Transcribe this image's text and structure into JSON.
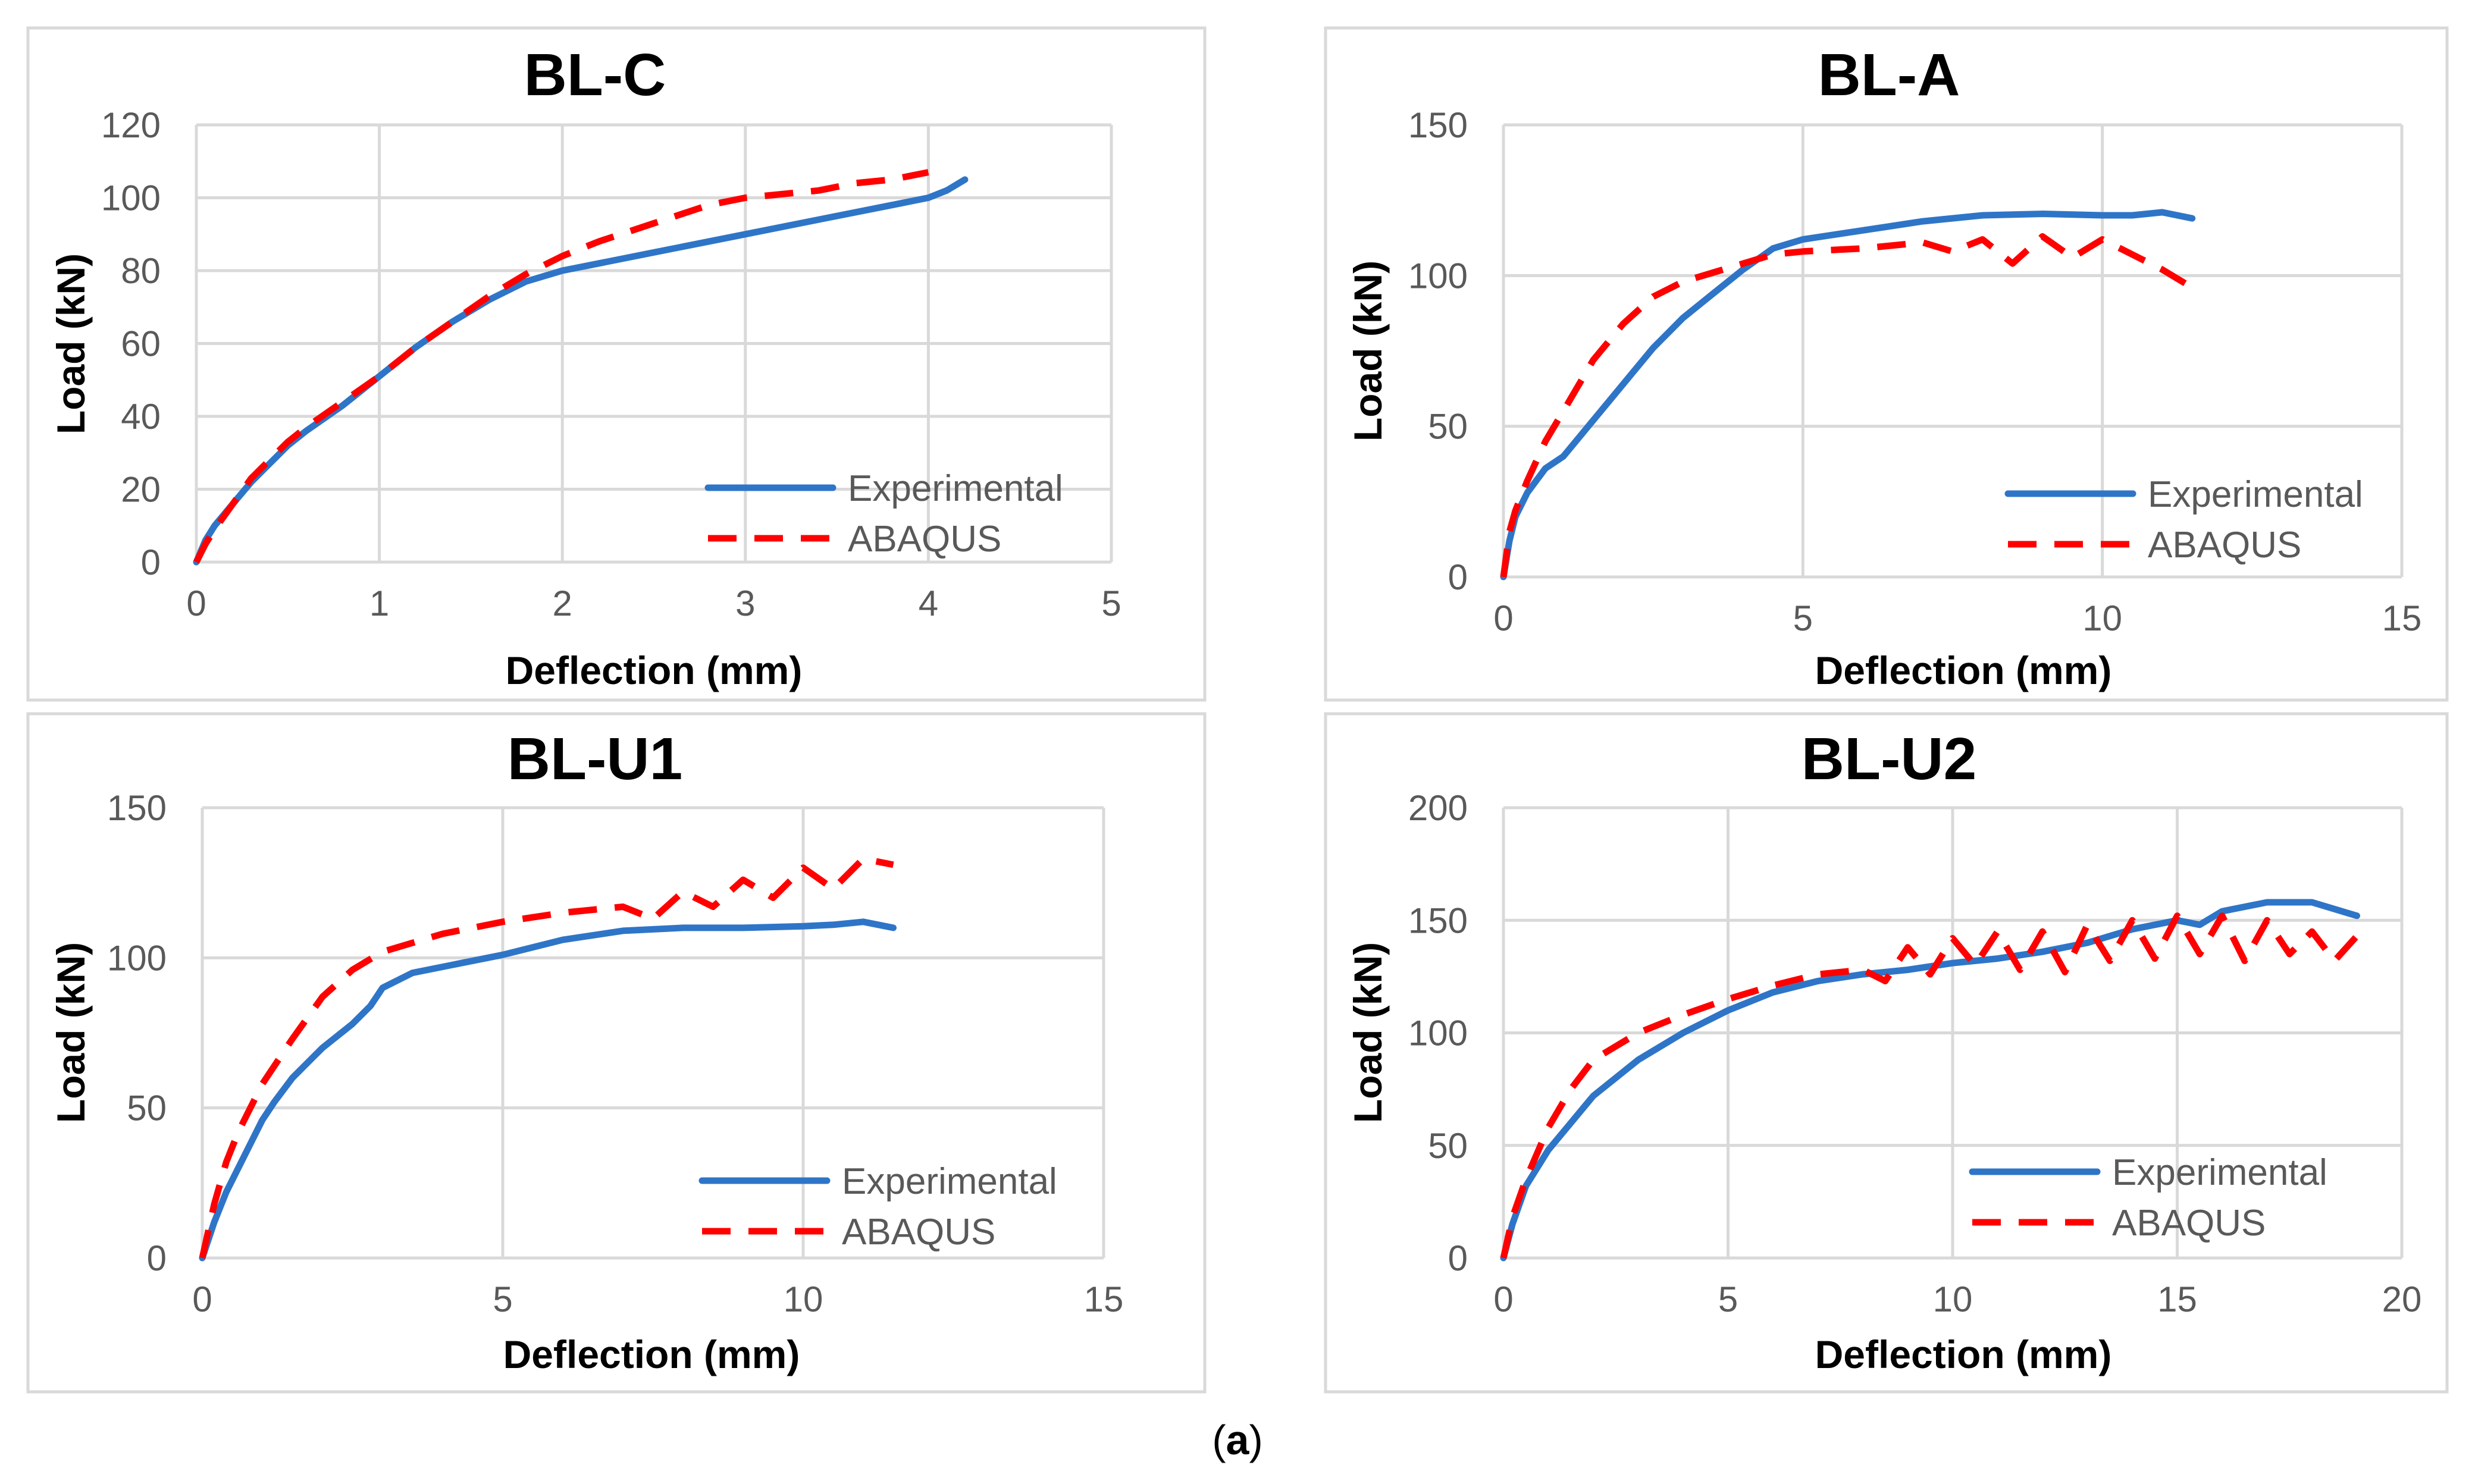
{
  "figure": {
    "caption_open": "(",
    "caption_letter": "a",
    "caption_close": ")"
  },
  "colors": {
    "experimental": "#2e75c8",
    "abaqus": "#ff0000",
    "grid": "#d9d9d9",
    "frame": "#d9d9d9"
  },
  "chart_data": [
    {
      "id": "bl-c",
      "type": "line",
      "title": "BL-C",
      "xlabel": "Deflection (mm)",
      "ylabel": "Load (kN)",
      "xlim": [
        0,
        5
      ],
      "ylim": [
        0,
        120
      ],
      "xticks": [
        0,
        1,
        2,
        3,
        4,
        5
      ],
      "yticks": [
        0,
        20,
        40,
        60,
        80,
        100,
        120
      ],
      "grid": true,
      "legend_position": "bottom-right",
      "series": [
        {
          "name": "Experimental",
          "style": "solid",
          "x": [
            0,
            0.05,
            0.1,
            0.2,
            0.3,
            0.4,
            0.5,
            0.6,
            0.8,
            1.0,
            1.2,
            1.4,
            1.6,
            1.8,
            2.0,
            2.2,
            2.5,
            3.0,
            3.5,
            3.8,
            4.0,
            4.1,
            4.2
          ],
          "y": [
            0,
            6,
            10,
            16,
            22,
            27,
            32,
            36,
            43,
            51,
            59,
            66,
            72,
            77,
            80,
            82,
            85,
            90,
            95,
            98,
            100,
            102,
            105
          ]
        },
        {
          "name": "ABAQUS",
          "style": "dashed",
          "x": [
            0,
            0.05,
            0.1,
            0.2,
            0.3,
            0.4,
            0.5,
            0.6,
            0.8,
            1.0,
            1.2,
            1.4,
            1.6,
            1.8,
            2.0,
            2.2,
            2.5,
            2.8,
            3.0,
            3.2,
            3.4,
            3.6,
            3.8,
            4.0
          ],
          "y": [
            0,
            5,
            9,
            16,
            23,
            28,
            33,
            37,
            44,
            51,
            59,
            66,
            73,
            79,
            84,
            88,
            93,
            98,
            100,
            101,
            102,
            104,
            105,
            107
          ]
        }
      ]
    },
    {
      "id": "bl-a",
      "type": "line",
      "title": "BL-A",
      "xlabel": "Deflection (mm)",
      "ylabel": "Load (kN)",
      "xlim": [
        0,
        15
      ],
      "ylim": [
        0,
        150
      ],
      "xticks": [
        0,
        5,
        10,
        15
      ],
      "yticks": [
        0,
        50,
        100,
        150
      ],
      "grid": true,
      "legend_position": "bottom-right",
      "series": [
        {
          "name": "Experimental",
          "style": "solid",
          "x": [
            0,
            0.1,
            0.2,
            0.4,
            0.7,
            1.0,
            1.5,
            2.0,
            2.5,
            3.0,
            3.5,
            4.0,
            4.5,
            5.0,
            6.0,
            7.0,
            8.0,
            9.0,
            10.0,
            10.5,
            11.0,
            11.5
          ],
          "y": [
            0,
            12,
            20,
            28,
            36,
            40,
            52,
            64,
            76,
            86,
            94,
            102,
            109,
            112,
            115,
            118,
            120,
            120.5,
            120,
            120,
            121,
            119
          ]
        },
        {
          "name": "ABAQUS",
          "style": "dashed",
          "x": [
            0,
            0.1,
            0.2,
            0.4,
            0.7,
            1.0,
            1.5,
            2.0,
            2.5,
            3.0,
            3.5,
            4.0,
            4.5,
            5.0,
            6.0,
            7.0,
            7.5,
            8.0,
            8.5,
            9.0,
            9.5,
            10.0,
            10.5,
            11.0,
            11.5
          ],
          "y": [
            0,
            15,
            22,
            32,
            45,
            55,
            72,
            84,
            93,
            98,
            101,
            104,
            107,
            108,
            109,
            111,
            108,
            112,
            104,
            113,
            106,
            112,
            107,
            102,
            96
          ]
        }
      ]
    },
    {
      "id": "bl-u1",
      "type": "line",
      "title": "BL-U1",
      "xlabel": "Deflection (mm)",
      "ylabel": "Load (kN)",
      "xlim": [
        0,
        15
      ],
      "ylim": [
        0,
        150
      ],
      "xticks": [
        0,
        5,
        10,
        15
      ],
      "yticks": [
        0,
        50,
        100,
        150
      ],
      "grid": true,
      "legend_position": "bottom-right",
      "series": [
        {
          "name": "Experimental",
          "style": "solid",
          "x": [
            0,
            0.2,
            0.4,
            0.6,
            0.8,
            1.0,
            1.2,
            1.5,
            1.8,
            2.0,
            2.5,
            2.8,
            3.0,
            3.5,
            4.0,
            5.0,
            6.0,
            7.0,
            8.0,
            9.0,
            10.0,
            10.5,
            11.0,
            11.5
          ],
          "y": [
            0,
            12,
            22,
            30,
            38,
            46,
            52,
            60,
            66,
            70,
            78,
            84,
            90,
            95,
            97,
            101,
            106,
            109,
            110,
            110,
            110.5,
            111,
            112,
            110
          ]
        },
        {
          "name": "ABAQUS",
          "style": "dashed",
          "x": [
            0,
            0.2,
            0.4,
            0.6,
            0.8,
            1.0,
            1.5,
            2.0,
            2.5,
            3.0,
            3.5,
            4.0,
            5.0,
            6.0,
            7.0,
            7.5,
            8.0,
            8.5,
            9.0,
            9.5,
            10.0,
            10.5,
            11.0,
            11.5
          ],
          "y": [
            0,
            18,
            32,
            42,
            50,
            58,
            73,
            87,
            96,
            102,
            105,
            108,
            112,
            115,
            117,
            113,
            122,
            117,
            126,
            120,
            130,
            123,
            133,
            131
          ]
        }
      ]
    },
    {
      "id": "bl-u2",
      "type": "line",
      "title": "BL-U2",
      "xlabel": "Deflection (mm)",
      "ylabel": "Load (kN)",
      "xlim": [
        0,
        20
      ],
      "ylim": [
        0,
        200
      ],
      "xticks": [
        0,
        5,
        10,
        15,
        20
      ],
      "yticks": [
        0,
        50,
        100,
        150,
        200
      ],
      "grid": true,
      "legend_position": "bottom-right",
      "series": [
        {
          "name": "Experimental",
          "style": "solid",
          "x": [
            0,
            0.2,
            0.5,
            1.0,
            1.5,
            2.0,
            3.0,
            4.0,
            5.0,
            6.0,
            7.0,
            8.0,
            9.0,
            10.0,
            11.0,
            12.0,
            13.0,
            14.0,
            15.0,
            15.5,
            16.0,
            17.0,
            18.0,
            19.0
          ],
          "y": [
            0,
            15,
            32,
            48,
            60,
            72,
            88,
            100,
            110,
            118,
            123,
            126,
            128,
            131,
            133,
            136,
            140,
            146,
            150,
            148,
            154,
            158,
            158,
            152
          ]
        },
        {
          "name": "ABAQUS",
          "style": "dashed",
          "x": [
            0,
            0.2,
            0.5,
            1.0,
            1.5,
            2.0,
            3.0,
            4.0,
            5.0,
            6.0,
            7.0,
            8.0,
            8.5,
            9.0,
            9.5,
            10.0,
            10.5,
            11.0,
            11.5,
            12.0,
            12.5,
            13.0,
            13.5,
            14.0,
            14.5,
            15.0,
            15.5,
            16.0,
            16.5,
            17.0,
            17.5,
            18.0,
            18.5,
            19.0
          ],
          "y": [
            0,
            18,
            35,
            58,
            75,
            88,
            100,
            108,
            115,
            121,
            126,
            128,
            123,
            138,
            126,
            142,
            130,
            145,
            128,
            145,
            127,
            148,
            132,
            150,
            133,
            152,
            135,
            152,
            132,
            150,
            135,
            145,
            132,
            143
          ]
        }
      ]
    }
  ]
}
